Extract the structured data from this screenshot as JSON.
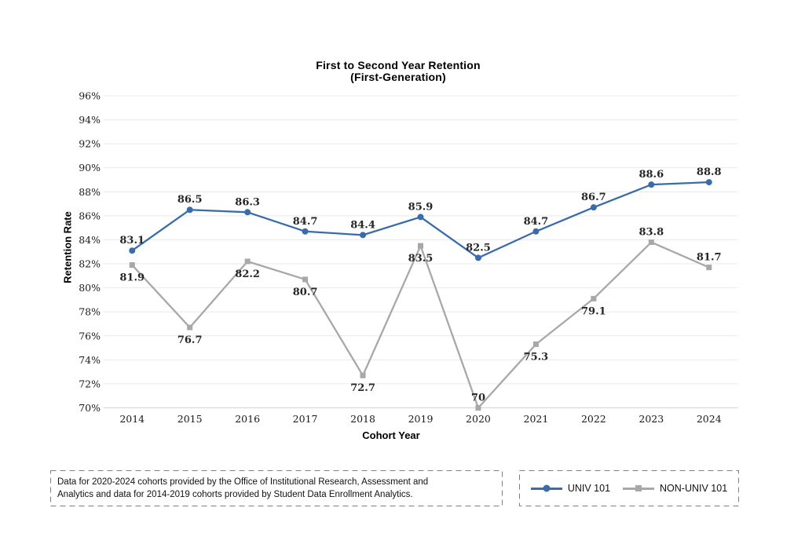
{
  "title": {
    "line1": "First to Second Year Retention",
    "line2": "(First-Generation)"
  },
  "footnote": {
    "lines": [
      "Data for 2020-2024 cohorts provided by the Office of Institutional Research, Assessment and",
      "Analytics and data for 2014-2019 cohorts provided by Student Data Enrollment Analytics."
    ]
  },
  "legend": {
    "position": "bottom-right",
    "items": [
      {
        "label": "UNIV 101",
        "color": "#3A6CAA",
        "marker": "circle"
      },
      {
        "label": "NON-UNIV 101",
        "color": "#A8A8A8",
        "marker": "square"
      }
    ]
  },
  "chart_data": {
    "type": "line",
    "title": "First to Second Year Retention (First-Generation)",
    "xlabel": "Cohort Year",
    "ylabel": "Retention Rate",
    "categories": [
      "2014",
      "2015",
      "2016",
      "2017",
      "2018",
      "2019",
      "2020",
      "2021",
      "2022",
      "2023",
      "2024"
    ],
    "ylim": [
      70,
      96
    ],
    "ytick_step": 2,
    "ytick_suffix": "%",
    "grid": true,
    "grid_color": "#E9E9E9",
    "axis_color": "#D3D3D3",
    "legend_position": "bottom-right",
    "series": [
      {
        "name": "UNIV 101",
        "color": "#3A6CAA",
        "marker": "circle",
        "values": [
          83.1,
          86.5,
          86.3,
          84.7,
          84.4,
          85.9,
          82.5,
          84.7,
          86.7,
          88.6,
          88.8
        ],
        "label_positions": [
          "above",
          "above",
          "above",
          "above",
          "above",
          "above",
          "above",
          "above",
          "above",
          "above",
          "above"
        ]
      },
      {
        "name": "NON-UNIV 101",
        "color": "#A8A8A8",
        "marker": "square",
        "values": [
          81.9,
          76.7,
          82.2,
          80.7,
          72.7,
          83.5,
          70,
          75.3,
          79.1,
          83.8,
          81.7
        ],
        "label_positions": [
          "below",
          "below",
          "below",
          "below",
          "below",
          "below",
          "above",
          "below",
          "below",
          "above",
          "above"
        ]
      }
    ]
  }
}
